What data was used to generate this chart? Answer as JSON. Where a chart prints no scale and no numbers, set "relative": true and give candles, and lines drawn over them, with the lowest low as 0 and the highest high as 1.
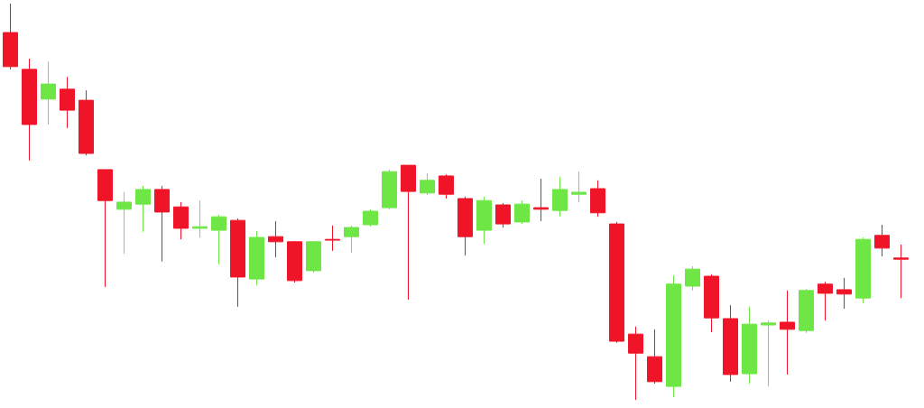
{
  "chart_data": {
    "type": "candlestick",
    "relative": true,
    "categories": [
      null,
      null,
      null,
      null,
      null,
      null,
      null,
      null,
      null,
      null,
      null,
      null,
      null,
      null,
      null,
      null,
      null,
      null,
      null,
      null,
      null,
      null,
      null,
      null,
      null,
      null,
      null,
      null,
      null,
      null,
      null,
      null,
      null,
      null,
      null,
      null,
      null,
      null,
      null,
      null,
      null,
      null,
      null,
      null,
      null,
      null,
      null,
      null
    ],
    "ohlc": [
      [
        0.927,
        1,
        0.834,
        0.841
      ],
      [
        0.834,
        0.861,
        0.604,
        0.695
      ],
      [
        0.759,
        0.854,
        0.695,
        0.797
      ],
      [
        0.784,
        0.815,
        0.686,
        0.731
      ],
      [
        0.756,
        0.781,
        0.617,
        0.622
      ],
      [
        0.581,
        0.581,
        0.285,
        0.503
      ],
      [
        0.481,
        0.524,
        0.369,
        0.499
      ],
      [
        0.494,
        0.54,
        0.424,
        0.531
      ],
      [
        0.531,
        0.54,
        0.349,
        0.474
      ],
      [
        0.487,
        0.499,
        0.405,
        0.433
      ],
      [
        0.433,
        0.503,
        0.41,
        0.437
      ],
      [
        0.428,
        0.467,
        0.342,
        0.462
      ],
      [
        0.453,
        0.458,
        0.235,
        0.31
      ],
      [
        0.305,
        0.426,
        0.289,
        0.41
      ],
      [
        0.412,
        0.451,
        0.36,
        0.399
      ],
      [
        0.399,
        0.401,
        0.296,
        0.301
      ],
      [
        0.326,
        0.401,
        0.321,
        0.399
      ],
      [
        0.405,
        0.44,
        0.376,
        0.403
      ],
      [
        0.412,
        0.44,
        0.371,
        0.435
      ],
      [
        0.442,
        0.481,
        0.437,
        0.476
      ],
      [
        0.485,
        0.581,
        0.481,
        0.576
      ],
      [
        0.592,
        0.592,
        0.253,
        0.526
      ],
      [
        0.522,
        0.572,
        0.517,
        0.554
      ],
      [
        0.565,
        0.569,
        0.508,
        0.519
      ],
      [
        0.508,
        0.513,
        0.364,
        0.412
      ],
      [
        0.428,
        0.513,
        0.394,
        0.503
      ],
      [
        0.492,
        0.497,
        0.435,
        0.444
      ],
      [
        0.449,
        0.503,
        0.444,
        0.494
      ],
      [
        0.485,
        0.558,
        0.451,
        0.481
      ],
      [
        0.478,
        0.563,
        0.462,
        0.531
      ],
      [
        0.519,
        0.576,
        0.499,
        0.524
      ],
      [
        0.533,
        0.554,
        0.462,
        0.472
      ],
      [
        0.444,
        0.449,
        0.144,
        0.148
      ],
      [
        0.166,
        0.185,
        0,
        0.118
      ],
      [
        0.109,
        0.178,
        0.041,
        0.046
      ],
      [
        0.034,
        0.314,
        0.007,
        0.292
      ],
      [
        0.287,
        0.337,
        0.276,
        0.33
      ],
      [
        0.312,
        0.317,
        0.171,
        0.207
      ],
      [
        0.205,
        0.239,
        0.046,
        0.064
      ],
      [
        0.066,
        0.235,
        0.041,
        0.191
      ],
      [
        0.189,
        0.2,
        0.034,
        0.194
      ],
      [
        0.196,
        0.276,
        0.064,
        0.178
      ],
      [
        0.175,
        0.28,
        0.169,
        0.276
      ],
      [
        0.292,
        0.298,
        0.2,
        0.269
      ],
      [
        0.278,
        0.308,
        0.23,
        0.267
      ],
      [
        0.257,
        0.41,
        0.244,
        0.405
      ],
      [
        0.415,
        0.442,
        0.362,
        0.383
      ],
      [
        0.358,
        0.392,
        0.257,
        0.355
      ]
    ],
    "colors": [
      "#f01428",
      "#f01428",
      "#6ee646",
      "#f01428",
      "#f01428",
      "#f01428",
      "#6ee646",
      "#6ee646",
      "#f01428",
      "#f01428",
      "#6ee646",
      "#6ee646",
      "#f01428",
      "#6ee646",
      "#f01428",
      "#f01428",
      "#6ee646",
      "#f01428",
      "#6ee646",
      "#6ee646",
      "#6ee646",
      "#f01428",
      "#6ee646",
      "#f01428",
      "#f01428",
      "#6ee646",
      "#f01428",
      "#6ee646",
      "#f01428",
      "#6ee646",
      "#6ee646",
      "#f01428",
      "#f01428",
      "#f01428",
      "#f01428",
      "#6ee646",
      "#6ee646",
      "#f01428",
      "#f01428",
      "#6ee646",
      "#6ee646",
      "#f01428",
      "#6ee646",
      "#f01428",
      "#f01428",
      "#6ee646",
      "#f01428",
      "#f01428"
    ]
  }
}
